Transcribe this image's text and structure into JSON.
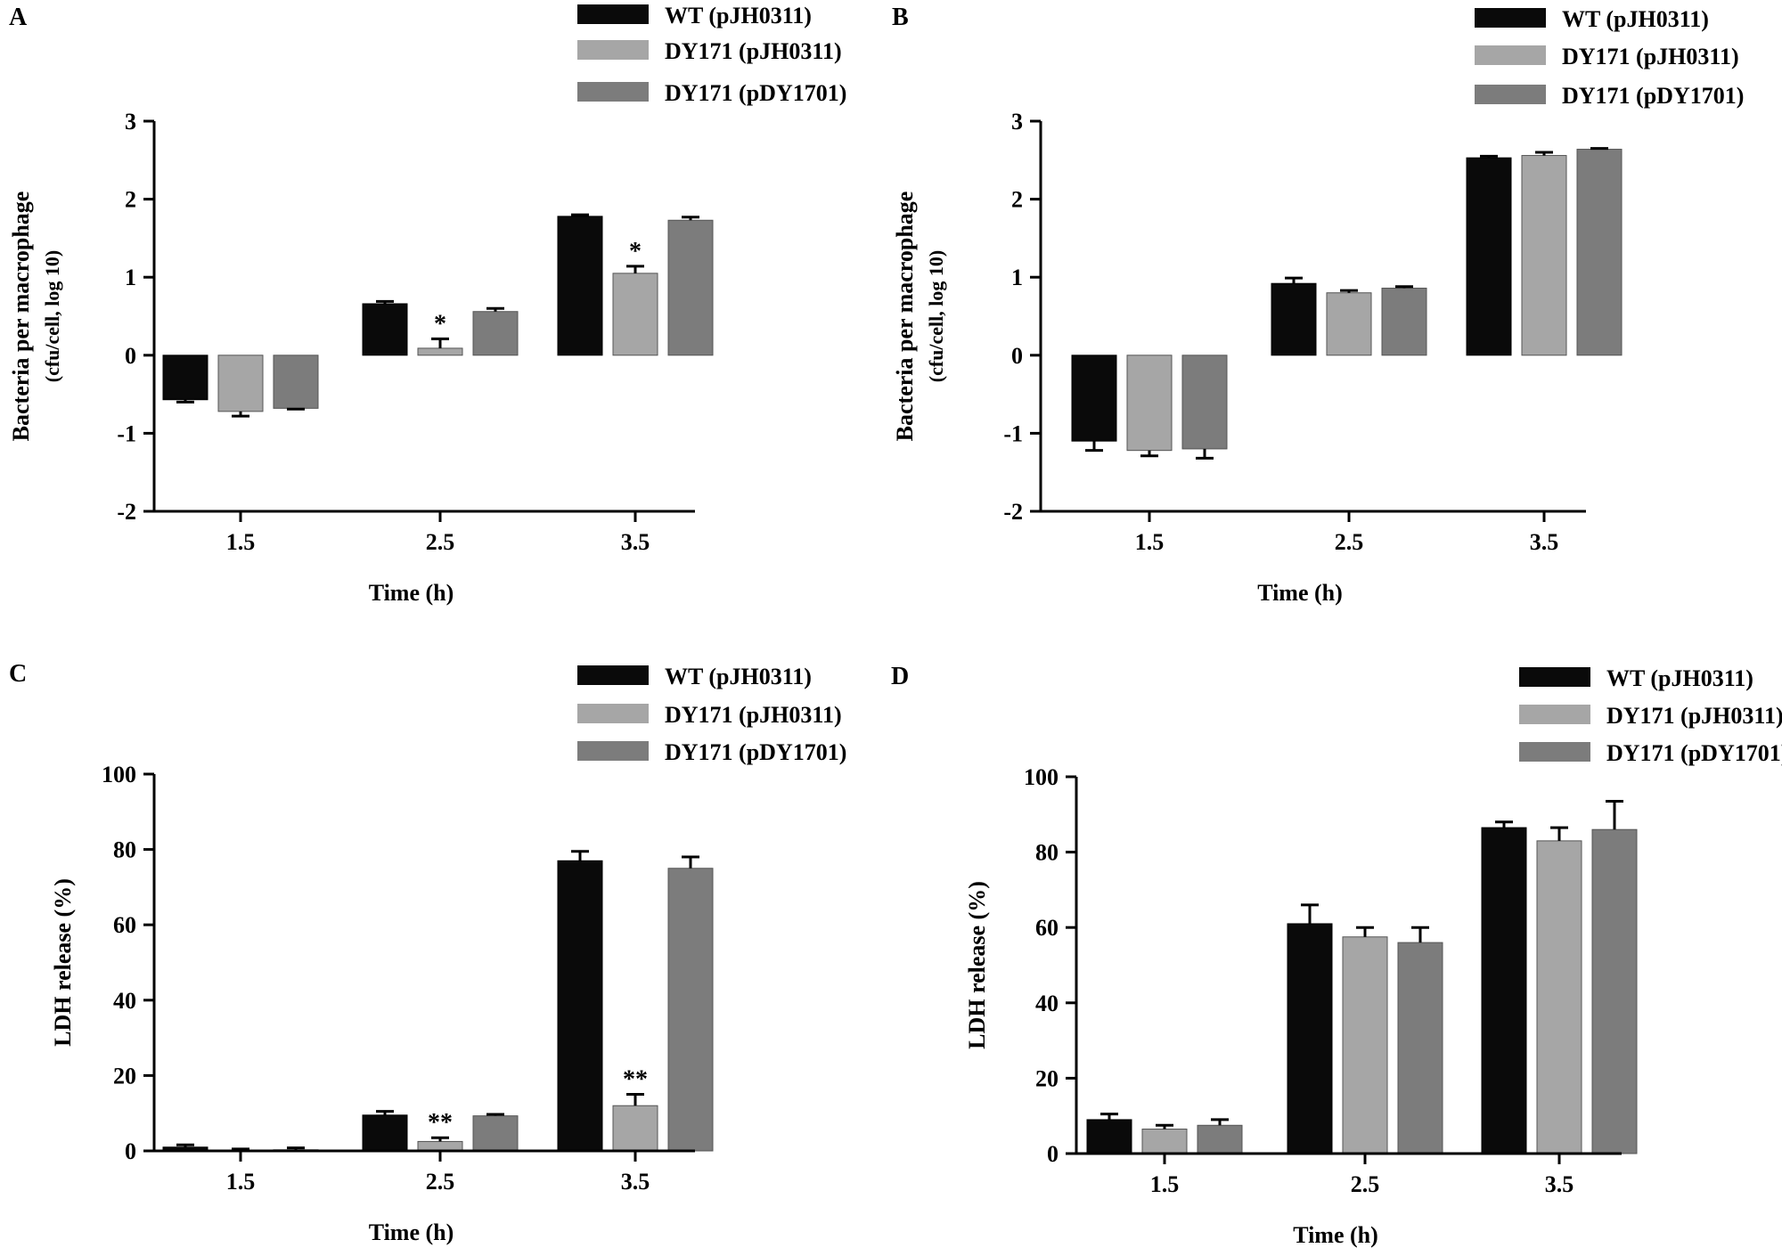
{
  "figure": {
    "series_names": [
      "WT (pJH0311)",
      "DY171 (pJH0311)",
      "DY171 (pDY1701)"
    ],
    "series_colors": [
      "#0a0a0a",
      "#a6a6a6",
      "#7c7c7c"
    ]
  },
  "chart_data": [
    {
      "panel_label": "A",
      "type": "bar",
      "xlabel": "Time (h)",
      "ylabel_line1": "Bacteria per macrophage",
      "ylabel_line2": "(cfu/cell, log 10)",
      "categories": [
        "1.5",
        "2.5",
        "3.5"
      ],
      "ylim": [
        -2,
        3
      ],
      "yticks": [
        -2,
        -1,
        0,
        1,
        2,
        3
      ],
      "tick_labels": [
        "-2",
        "-1",
        "0",
        "1",
        "2",
        "3"
      ],
      "series": [
        {
          "name": "WT (pJH0311)",
          "values": [
            -0.57,
            0.66,
            1.78
          ],
          "errors": [
            0.03,
            0.03,
            0.02
          ]
        },
        {
          "name": "DY171 (pJH0311)",
          "values": [
            -0.72,
            0.09,
            1.05
          ],
          "errors": [
            0.06,
            0.12,
            0.09
          ]
        },
        {
          "name": "DY171 (pDY1701)",
          "values": [
            -0.68,
            0.56,
            1.73
          ],
          "errors": [
            0.01,
            0.04,
            0.04
          ]
        }
      ],
      "annotations": [
        {
          "category": "2.5",
          "series": 1,
          "text": "*"
        },
        {
          "category": "3.5",
          "series": 1,
          "text": "*"
        }
      ]
    },
    {
      "panel_label": "B",
      "type": "bar",
      "xlabel": "Time (h)",
      "ylabel_line1": "Bacteria per macrophage",
      "ylabel_line2": "(cfu/cell, log 10)",
      "categories": [
        "1.5",
        "2.5",
        "3.5"
      ],
      "ylim": [
        -2,
        3
      ],
      "yticks": [
        -2,
        -1,
        0,
        1,
        2,
        3
      ],
      "tick_labels": [
        "-2",
        "-1",
        "0",
        "1",
        "2",
        "3"
      ],
      "series": [
        {
          "name": "WT (pJH0311)",
          "values": [
            -1.1,
            0.92,
            2.53
          ],
          "errors": [
            0.12,
            0.07,
            0.02
          ]
        },
        {
          "name": "DY171 (pJH0311)",
          "values": [
            -1.22,
            0.8,
            2.56
          ],
          "errors": [
            0.07,
            0.03,
            0.04
          ]
        },
        {
          "name": "DY171 (pDY1701)",
          "values": [
            -1.2,
            0.86,
            2.64
          ],
          "errors": [
            0.12,
            0.02,
            0.01
          ]
        }
      ],
      "annotations": []
    },
    {
      "panel_label": "C",
      "type": "bar",
      "xlabel": "Time (h)",
      "ylabel_line1": "LDH release (%)",
      "ylabel_line2": "",
      "categories": [
        "1.5",
        "2.5",
        "3.5"
      ],
      "ylim": [
        0,
        100
      ],
      "yticks": [
        0,
        20,
        40,
        60,
        80,
        100
      ],
      "tick_labels": [
        "0",
        "20",
        "40",
        "60",
        "80",
        "100"
      ],
      "series": [
        {
          "name": "WT (pJH0311)",
          "values": [
            1,
            9.5,
            77
          ],
          "errors": [
            0.6,
            1,
            2.5
          ]
        },
        {
          "name": "DY171 (pJH0311)",
          "values": [
            0,
            2.5,
            12
          ],
          "errors": [
            0.5,
            1,
            3
          ]
        },
        {
          "name": "DY171 (pDY1701)",
          "values": [
            0.3,
            9.3,
            75
          ],
          "errors": [
            0.5,
            0.4,
            3
          ]
        }
      ],
      "annotations": [
        {
          "category": "2.5",
          "series": 1,
          "text": "**"
        },
        {
          "category": "3.5",
          "series": 1,
          "text": "**"
        }
      ]
    },
    {
      "panel_label": "D",
      "type": "bar",
      "xlabel": "Time (h)",
      "ylabel_line1": "LDH release (%)",
      "ylabel_line2": "",
      "categories": [
        "1.5",
        "2.5",
        "3.5"
      ],
      "ylim": [
        0,
        100
      ],
      "yticks": [
        0,
        20,
        40,
        60,
        80,
        100
      ],
      "tick_labels": [
        "0",
        "20",
        "40",
        "60",
        "80",
        "100"
      ],
      "series": [
        {
          "name": "WT (pJH0311)",
          "values": [
            9,
            61,
            86.5
          ],
          "errors": [
            1.5,
            5,
            1.5
          ]
        },
        {
          "name": "DY171 (pJH0311)",
          "values": [
            6.5,
            57.5,
            83
          ],
          "errors": [
            1,
            2.5,
            3.5
          ]
        },
        {
          "name": "DY171 (pDY1701)",
          "values": [
            7.5,
            56,
            86
          ],
          "errors": [
            1.5,
            4,
            7.5
          ]
        }
      ],
      "annotations": []
    }
  ]
}
